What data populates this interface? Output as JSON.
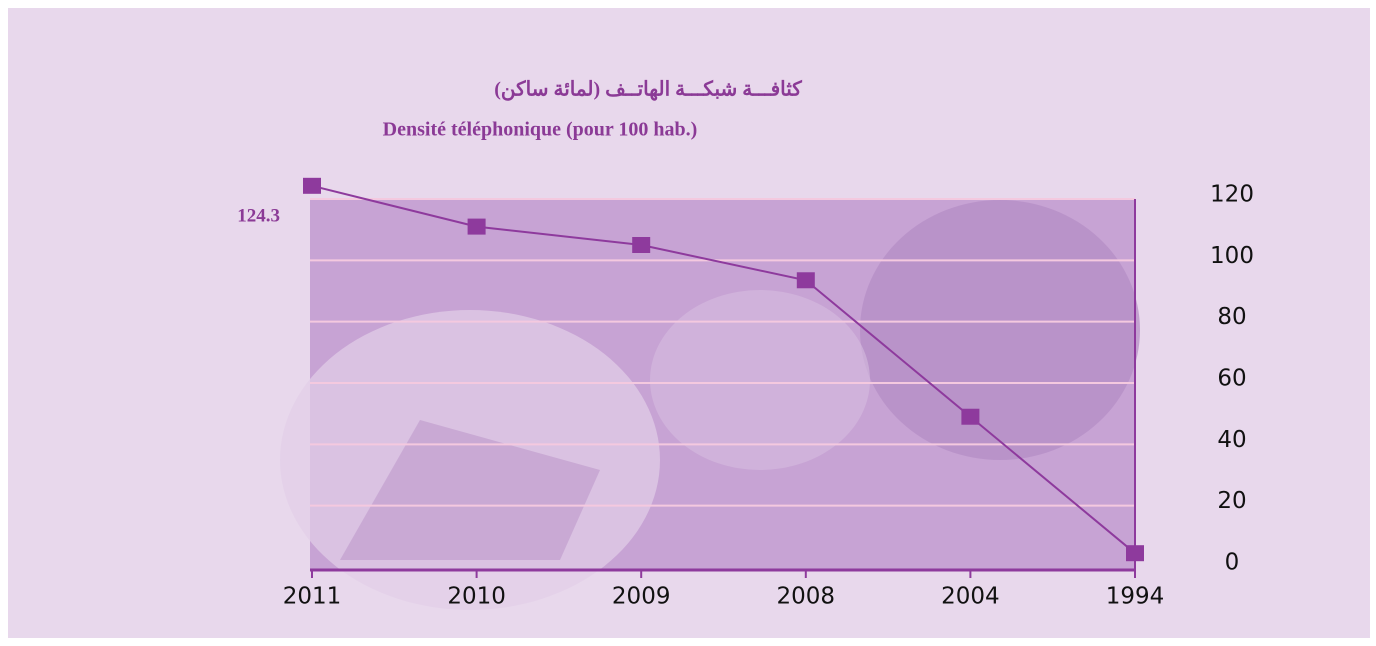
{
  "chart_data": {
    "type": "line",
    "title": "كثافـــة شبكـــة الهاتــف  (لمائة ساكن)",
    "subtitle": "Densité téléphonique (pour 100 hab.)",
    "categories": [
      "2011",
      "2010",
      "2009",
      "2008",
      "2004",
      "1994"
    ],
    "values": [
      124.3,
      111,
      105,
      93.5,
      49,
      4.5
    ],
    "value_labels": [
      "124.3",
      null,
      null,
      null,
      null,
      null
    ],
    "color": "#8e3a9d",
    "ylim": [
      0,
      120
    ],
    "yticks": [
      0,
      20,
      40,
      60,
      80,
      100,
      120
    ],
    "grid": true
  }
}
